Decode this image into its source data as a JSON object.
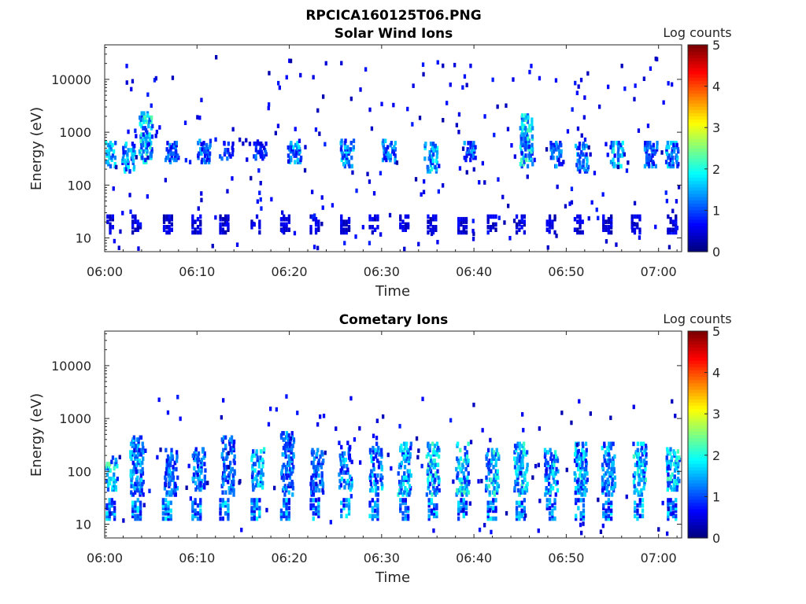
{
  "figure_title": "RPCICA160125T06.PNG",
  "colormap": "jet",
  "chart_data": [
    {
      "type": "heatmap",
      "title": "Solar Wind Ions",
      "xlabel": "Time",
      "ylabel": "Energy (eV)",
      "x_ticks": [
        "06:00",
        "06:10",
        "06:20",
        "06:30",
        "06:40",
        "06:50",
        "07:00"
      ],
      "x_range": [
        "06:00",
        "07:02:30"
      ],
      "y_ticks": [
        "10",
        "100",
        "1000",
        "10000"
      ],
      "y_scale": "log",
      "y_range": [
        5.5,
        45000
      ],
      "colorbar": {
        "label": "Log counts",
        "ticks": [
          "0",
          "1",
          "2",
          "3",
          "4",
          "5"
        ],
        "range": [
          0,
          5
        ]
      },
      "bursts": [
        {
          "t": 0.3,
          "e_lo": 250,
          "e_hi": 700,
          "c": 1.6
        },
        {
          "t": 2.4,
          "e_lo": 200,
          "e_hi": 700,
          "c": 1.5
        },
        {
          "t": 4.3,
          "e_lo": 300,
          "e_hi": 2500,
          "c": 1.8
        },
        {
          "t": 7.1,
          "e_lo": 300,
          "e_hi": 700,
          "c": 1.1
        },
        {
          "t": 10.6,
          "e_lo": 300,
          "e_hi": 800,
          "c": 1.2
        },
        {
          "t": 13.0,
          "e_lo": 350,
          "e_hi": 700,
          "c": 1.0
        },
        {
          "t": 16.6,
          "e_lo": 350,
          "e_hi": 800,
          "c": 1.0
        },
        {
          "t": 20.4,
          "e_lo": 300,
          "e_hi": 800,
          "c": 1.4
        },
        {
          "t": 26.1,
          "e_lo": 250,
          "e_hi": 800,
          "c": 1.5
        },
        {
          "t": 30.6,
          "e_lo": 300,
          "e_hi": 800,
          "c": 1.3
        },
        {
          "t": 35.2,
          "e_lo": 200,
          "e_hi": 700,
          "c": 1.6
        },
        {
          "t": 39.4,
          "e_lo": 300,
          "e_hi": 700,
          "c": 1.2
        },
        {
          "t": 45.5,
          "e_lo": 250,
          "e_hi": 2500,
          "c": 1.8
        },
        {
          "t": 48.8,
          "e_lo": 250,
          "e_hi": 700,
          "c": 1.2
        },
        {
          "t": 51.5,
          "e_lo": 200,
          "e_hi": 700,
          "c": 1.4
        },
        {
          "t": 55.3,
          "e_lo": 250,
          "e_hi": 700,
          "c": 1.6
        },
        {
          "t": 59.0,
          "e_lo": 250,
          "e_hi": 700,
          "c": 1.2
        },
        {
          "t": 61.3,
          "e_lo": 250,
          "e_hi": 700,
          "c": 1.4
        }
      ],
      "low_band": {
        "e_lo": 14,
        "e_hi": 30,
        "c": 0.6
      },
      "low_band_times": [
        0.3,
        3.3,
        6.7,
        9.8,
        12.8,
        16.2,
        19.4,
        22.6,
        25.9,
        29.0,
        32.3,
        35.3,
        38.6,
        41.8,
        44.9,
        48.2,
        51.2,
        54.3,
        57.4,
        61.3
      ],
      "scatter_seed": 7,
      "scatter_count": 260,
      "scatter_e_range": [
        6,
        30000
      ]
    },
    {
      "type": "heatmap",
      "title": "Cometary Ions",
      "xlabel": "Time",
      "ylabel": "Energy (eV)",
      "x_ticks": [
        "06:00",
        "06:10",
        "06:20",
        "06:30",
        "06:40",
        "06:50",
        "07:00"
      ],
      "x_range": [
        "06:00",
        "07:02:30"
      ],
      "y_ticks": [
        "10",
        "100",
        "1000",
        "10000"
      ],
      "y_scale": "log",
      "y_range": [
        5.5,
        45000
      ],
      "colorbar": {
        "label": "Log counts",
        "ticks": [
          "0",
          "1",
          "2",
          "3",
          "4",
          "5"
        ],
        "range": [
          0,
          5
        ]
      },
      "bursts": [
        {
          "t": 0.5,
          "e_lo": 50,
          "e_hi": 200,
          "c": 1.9
        },
        {
          "t": 3.3,
          "e_lo": 40,
          "e_hi": 500,
          "c": 1.4
        },
        {
          "t": 7.0,
          "e_lo": 40,
          "e_hi": 300,
          "c": 1.3
        },
        {
          "t": 10.0,
          "e_lo": 50,
          "e_hi": 300,
          "c": 1.3
        },
        {
          "t": 13.2,
          "e_lo": 40,
          "e_hi": 500,
          "c": 1.2
        },
        {
          "t": 16.4,
          "e_lo": 50,
          "e_hi": 300,
          "c": 1.6
        },
        {
          "t": 19.6,
          "e_lo": 40,
          "e_hi": 600,
          "c": 1.3
        },
        {
          "t": 22.8,
          "e_lo": 40,
          "e_hi": 300,
          "c": 1.2
        },
        {
          "t": 25.9,
          "e_lo": 50,
          "e_hi": 400,
          "c": 1.4
        },
        {
          "t": 29.2,
          "e_lo": 40,
          "e_hi": 400,
          "c": 1.5
        },
        {
          "t": 32.3,
          "e_lo": 40,
          "e_hi": 400,
          "c": 1.6
        },
        {
          "t": 35.4,
          "e_lo": 40,
          "e_hi": 400,
          "c": 1.8
        },
        {
          "t": 38.6,
          "e_lo": 40,
          "e_hi": 400,
          "c": 1.8
        },
        {
          "t": 41.8,
          "e_lo": 40,
          "e_hi": 300,
          "c": 1.7
        },
        {
          "t": 44.9,
          "e_lo": 40,
          "e_hi": 400,
          "c": 1.7
        },
        {
          "t": 48.2,
          "e_lo": 40,
          "e_hi": 300,
          "c": 1.6
        },
        {
          "t": 51.4,
          "e_lo": 40,
          "e_hi": 400,
          "c": 1.6
        },
        {
          "t": 54.4,
          "e_lo": 40,
          "e_hi": 400,
          "c": 1.4
        },
        {
          "t": 57.8,
          "e_lo": 40,
          "e_hi": 400,
          "c": 1.7
        },
        {
          "t": 61.4,
          "e_lo": 50,
          "e_hi": 300,
          "c": 1.8
        }
      ],
      "low_band": {
        "e_lo": 14,
        "e_hi": 35,
        "c": 1.6
      },
      "low_band_times": [
        0.5,
        3.3,
        6.6,
        9.8,
        12.8,
        16.2,
        19.4,
        22.6,
        25.9,
        29.0,
        32.3,
        35.4,
        38.6,
        41.8,
        44.9,
        48.2,
        51.3,
        54.3,
        57.7,
        61.3
      ],
      "scatter_seed": 19,
      "scatter_count": 120,
      "scatter_e_range": [
        6,
        3000
      ]
    }
  ]
}
